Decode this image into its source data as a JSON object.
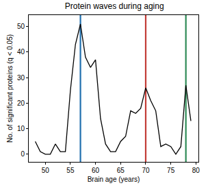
{
  "chart_data": {
    "type": "line",
    "title": "Protein waves during aging",
    "x_label": "Brain age (years)",
    "y_label": "No. of significant proteins (q < 0.05)",
    "x": [
      48,
      49,
      50,
      51,
      52,
      53,
      54,
      55,
      56,
      57,
      58,
      59,
      60,
      61,
      62,
      63,
      64,
      65,
      66,
      67,
      68,
      69,
      70,
      71,
      72,
      73,
      74,
      75,
      76,
      77,
      78,
      79
    ],
    "values": [
      5,
      1,
      0,
      0,
      4,
      1,
      1,
      25,
      43,
      51,
      38,
      34,
      37,
      14,
      4,
      1,
      1,
      5,
      7,
      17,
      16,
      18,
      26,
      21,
      17,
      3,
      4,
      3,
      0,
      3,
      27,
      13
    ],
    "color": "#000000",
    "xlim": [
      46.7,
      80.5
    ],
    "ylim": [
      -3,
      54.5
    ],
    "xticks": [
      50,
      55,
      60,
      65,
      70,
      75,
      80
    ],
    "yticks": [
      0,
      10,
      20,
      30,
      40,
      50
    ],
    "grid": false,
    "vertical_lines": [
      {
        "x": 57,
        "color": "#1f6fae"
      },
      {
        "x": 70,
        "color": "#c23b36"
      },
      {
        "x": 78,
        "color": "#2e8b57"
      }
    ]
  }
}
